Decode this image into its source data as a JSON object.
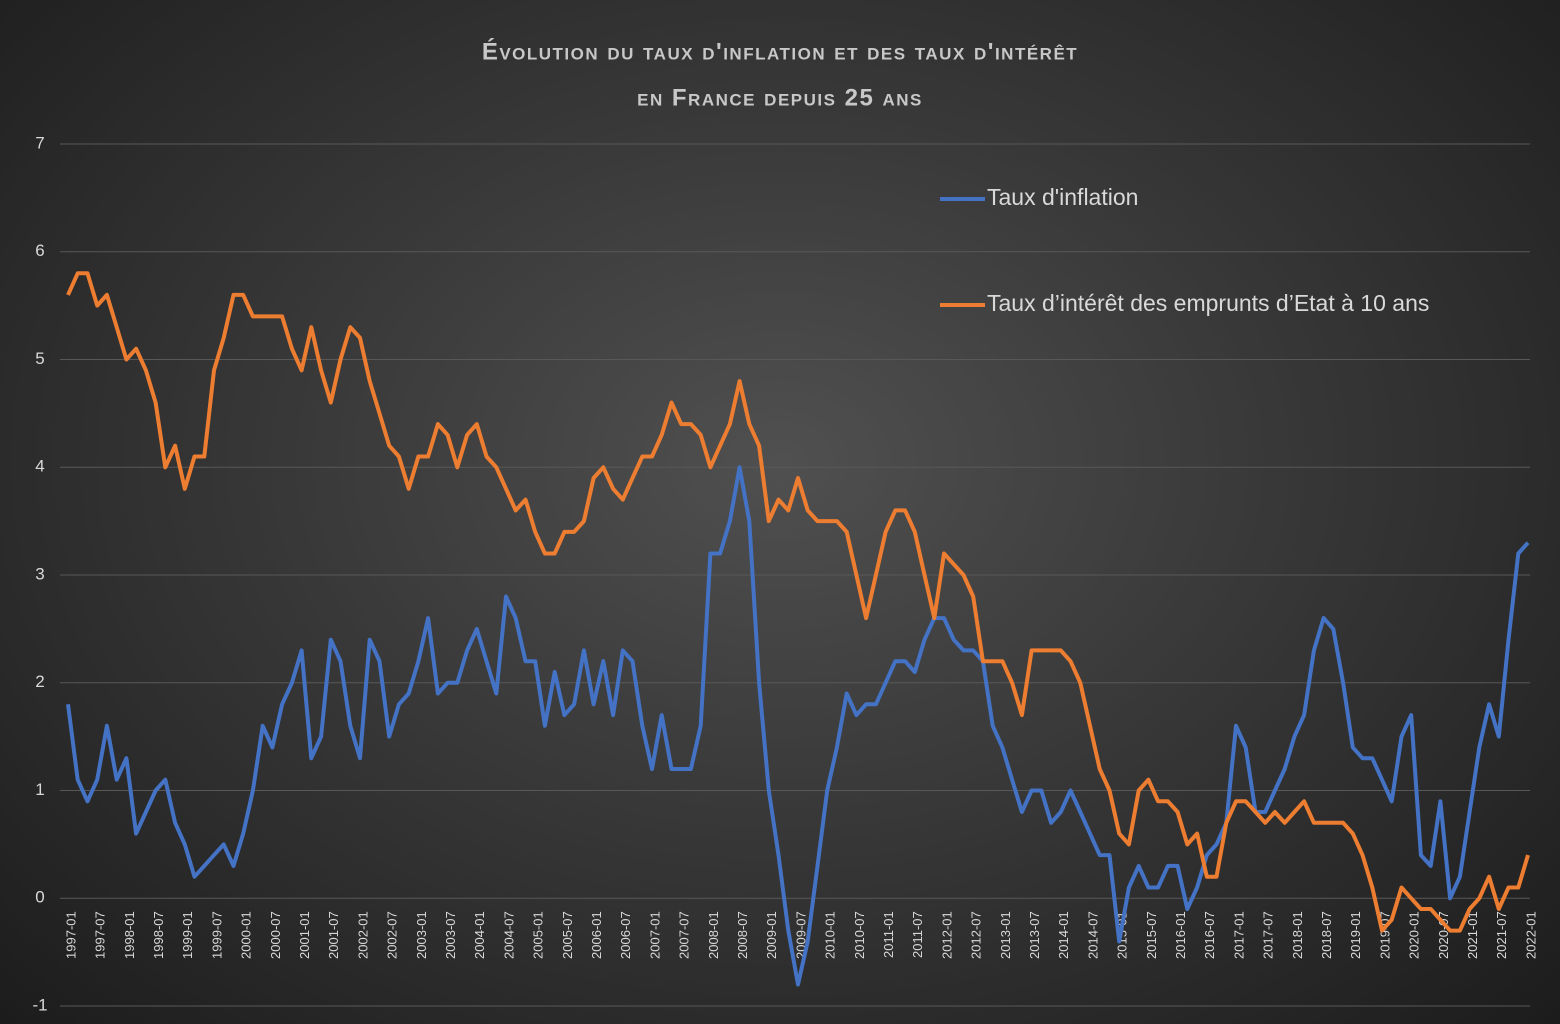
{
  "chart_data": {
    "type": "line",
    "title": [
      "Évolution du taux d'inflation et des taux d'intérêt",
      "en France depuis 25 ans"
    ],
    "categories": [
      "1997-01",
      null,
      null,
      "1997-07",
      null,
      null,
      "1998-01",
      null,
      null,
      "1998-07",
      null,
      null,
      "1999-01",
      null,
      null,
      "1999-07",
      null,
      null,
      "2000-01",
      null,
      null,
      "2000-07",
      null,
      null,
      "2001-01",
      null,
      null,
      "2001-07",
      null,
      null,
      "2002-01",
      null,
      null,
      "2002-07",
      null,
      null,
      "2003-01",
      null,
      null,
      "2003-07",
      null,
      null,
      "2004-01",
      null,
      null,
      "2004-07",
      null,
      null,
      "2005-01",
      null,
      null,
      "2005-07",
      null,
      null,
      "2006-01",
      null,
      null,
      "2006-07",
      null,
      null,
      "2007-01",
      null,
      null,
      "2007-07",
      null,
      null,
      "2008-01",
      null,
      null,
      "2008-07",
      null,
      null,
      "2009-01",
      null,
      null,
      "2009-07",
      null,
      null,
      "2010-01",
      null,
      null,
      "2010-07",
      null,
      null,
      "2011-01",
      null,
      null,
      "2011-07",
      null,
      null,
      "2012-01",
      null,
      null,
      "2012-07",
      null,
      null,
      "2013-01",
      null,
      null,
      "2013-07",
      null,
      null,
      "2014-01",
      null,
      null,
      "2014-07",
      null,
      null,
      "2015-01",
      null,
      null,
      "2015-07",
      null,
      null,
      "2016-01",
      null,
      null,
      "2016-07",
      null,
      null,
      "2017-01",
      null,
      null,
      "2017-07",
      null,
      null,
      "2018-01",
      null,
      null,
      "2018-07",
      null,
      null,
      "2019-01",
      null,
      null,
      "2019-07",
      null,
      null,
      "2020-01",
      null,
      null,
      "2020-07",
      null,
      null,
      "2021-01",
      null,
      null,
      "2021-07",
      null,
      null,
      "2022-01"
    ],
    "series": [
      {
        "name": "Taux d'inflation",
        "color": "#4472c4",
        "values": [
          1.8,
          1.1,
          0.9,
          1.1,
          1.6,
          1.1,
          1.3,
          0.6,
          0.8,
          1.0,
          1.1,
          0.7,
          0.5,
          0.2,
          0.3,
          0.4,
          0.5,
          0.3,
          0.6,
          1.0,
          1.6,
          1.4,
          1.8,
          2.0,
          2.3,
          1.3,
          1.5,
          2.4,
          2.2,
          1.6,
          1.3,
          2.4,
          2.2,
          1.5,
          1.8,
          1.9,
          2.2,
          2.6,
          1.9,
          2.0,
          2.0,
          2.3,
          2.5,
          2.2,
          1.9,
          2.8,
          2.6,
          2.2,
          2.2,
          1.6,
          2.1,
          1.7,
          1.8,
          2.3,
          1.8,
          2.2,
          1.7,
          2.3,
          2.2,
          1.6,
          1.2,
          1.7,
          1.2,
          1.2,
          1.2,
          1.6,
          3.2,
          3.2,
          3.5,
          4.0,
          3.5,
          2.0,
          1.0,
          0.4,
          -0.3,
          -0.8,
          -0.4,
          0.3,
          1.0,
          1.4,
          1.9,
          1.7,
          1.8,
          1.8,
          2.0,
          2.2,
          2.2,
          2.1,
          2.4,
          2.6,
          2.6,
          2.4,
          2.3,
          2.3,
          2.2,
          1.6,
          1.4,
          1.1,
          0.8,
          1.0,
          1.0,
          0.7,
          0.8,
          1.0,
          0.8,
          0.6,
          0.4,
          0.4,
          -0.4,
          0.1,
          0.3,
          0.1,
          0.1,
          0.3,
          0.3,
          -0.1,
          0.1,
          0.4,
          0.5,
          0.7,
          1.6,
          1.4,
          0.8,
          0.8,
          1.0,
          1.2,
          1.5,
          1.7,
          2.3,
          2.6,
          2.5,
          2.0,
          1.4,
          1.3,
          1.3,
          1.1,
          0.9,
          1.5,
          1.7,
          0.4,
          0.3,
          0.9,
          0.0,
          0.2,
          0.8,
          1.4,
          1.8,
          1.5,
          2.4,
          3.2,
          3.3
        ]
      },
      {
        "name": "Taux d’intérêt des emprunts d’Etat à 10 ans",
        "color": "#ed7d31",
        "values": [
          5.6,
          5.8,
          5.8,
          5.5,
          5.6,
          5.3,
          5.0,
          5.1,
          4.9,
          4.6,
          4.0,
          4.2,
          3.8,
          4.1,
          4.1,
          4.9,
          5.2,
          5.6,
          5.6,
          5.4,
          5.4,
          5.4,
          5.4,
          5.1,
          4.9,
          5.3,
          4.9,
          4.6,
          5.0,
          5.3,
          5.2,
          4.8,
          4.5,
          4.2,
          4.1,
          3.8,
          4.1,
          4.1,
          4.4,
          4.3,
          4.0,
          4.3,
          4.4,
          4.1,
          4.0,
          3.8,
          3.6,
          3.7,
          3.4,
          3.2,
          3.2,
          3.4,
          3.4,
          3.5,
          3.9,
          4.0,
          3.8,
          3.7,
          3.9,
          4.1,
          4.1,
          4.3,
          4.6,
          4.4,
          4.4,
          4.3,
          4.0,
          4.2,
          4.4,
          4.8,
          4.4,
          4.2,
          3.5,
          3.7,
          3.6,
          3.9,
          3.6,
          3.5,
          3.5,
          3.5,
          3.4,
          3.0,
          2.6,
          3.0,
          3.4,
          3.6,
          3.6,
          3.4,
          3.0,
          2.6,
          3.2,
          3.1,
          3.0,
          2.8,
          2.2,
          2.2,
          2.2,
          2.0,
          1.7,
          2.3,
          2.3,
          2.3,
          2.3,
          2.2,
          2.0,
          1.6,
          1.2,
          1.0,
          0.6,
          0.5,
          1.0,
          1.1,
          0.9,
          0.9,
          0.8,
          0.5,
          0.6,
          0.2,
          0.2,
          0.7,
          0.9,
          0.9,
          0.8,
          0.7,
          0.8,
          0.7,
          0.8,
          0.9,
          0.7,
          0.7,
          0.7,
          0.7,
          0.6,
          0.4,
          0.1,
          -0.3,
          -0.2,
          0.1,
          0.0,
          -0.1,
          -0.1,
          -0.2,
          -0.3,
          -0.3,
          -0.1,
          0.0,
          0.2,
          -0.1,
          0.1,
          0.1,
          0.4
        ]
      }
    ],
    "ylim": [
      -1,
      7
    ],
    "yticks": [
      -1,
      0,
      1,
      2,
      3,
      4,
      5,
      6,
      7
    ],
    "grid": true
  }
}
